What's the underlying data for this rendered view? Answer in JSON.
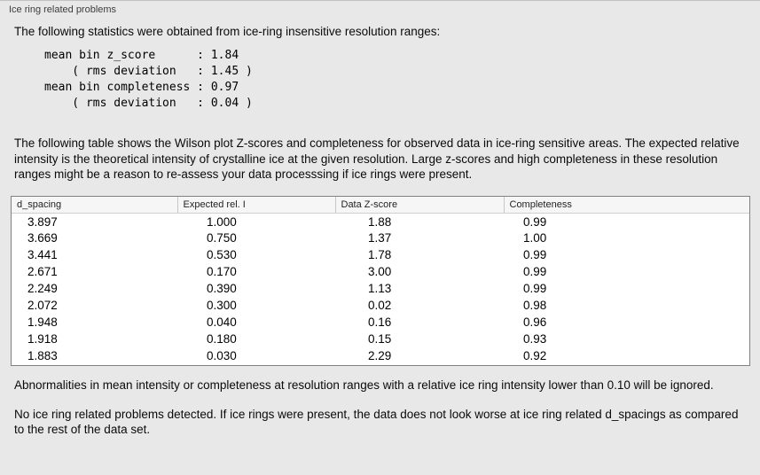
{
  "panel": {
    "title": "Ice ring related problems"
  },
  "intro": "The following statistics were obtained from ice-ring insensitive resolution ranges:",
  "stats": {
    "lines": [
      "mean bin z_score      : 1.84",
      "    ( rms deviation   : 1.45 )",
      "mean bin completeness : 0.97",
      "    ( rms deviation   : 0.04 )"
    ]
  },
  "description": "The following table shows the Wilson plot Z-scores and completeness for observed data in ice-ring sensitive areas. The expected relative intensity is the theoretical intensity of crystalline ice at the given resolution. Large z-scores and high completeness in these resolution ranges might be a reason to re-assess your data processsing if ice rings were present.",
  "table": {
    "columns": [
      "d_spacing",
      "Expected rel. I",
      "Data Z-score",
      "Completeness"
    ],
    "rows": [
      [
        "3.897",
        "1.000",
        "1.88",
        "0.99"
      ],
      [
        "3.669",
        "0.750",
        "1.37",
        "1.00"
      ],
      [
        "3.441",
        "0.530",
        "1.78",
        "0.99"
      ],
      [
        "2.671",
        "0.170",
        "3.00",
        "0.99"
      ],
      [
        "2.249",
        "0.390",
        "1.13",
        "0.99"
      ],
      [
        "2.072",
        "0.300",
        "0.02",
        "0.98"
      ],
      [
        "1.948",
        "0.040",
        "0.16",
        "0.96"
      ],
      [
        "1.918",
        "0.180",
        "0.15",
        "0.93"
      ],
      [
        "1.883",
        "0.030",
        "2.29",
        "0.92"
      ]
    ]
  },
  "note_ignore": "Abnormalities in mean intensity or completeness at resolution ranges with a relative ice ring intensity lower than 0.10 will be ignored.",
  "conclusion": "No ice ring related problems detected. If ice rings were present, the data does not look worse at ice ring related d_spacings as compared to the rest of the data set."
}
